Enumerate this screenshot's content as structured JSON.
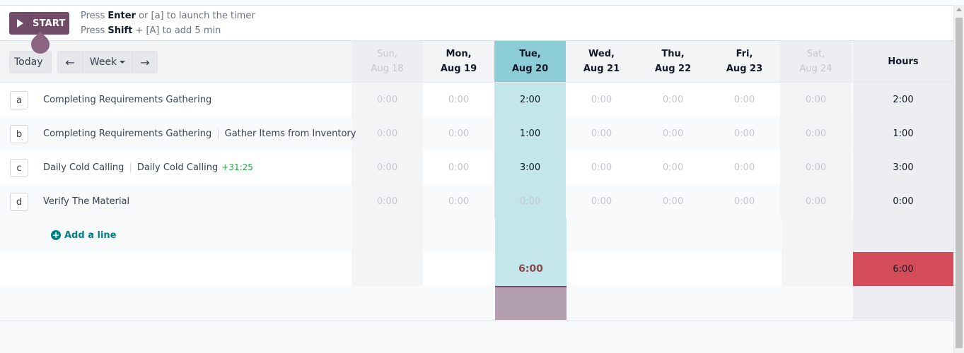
{
  "timer": {
    "start_label": "START",
    "hint1_pre": "Press ",
    "hint1_key": "Enter",
    "hint1_post": " or [a] to launch the timer",
    "hint2_pre": "Press ",
    "hint2_key": "Shift",
    "hint2_post": " + [A] to add 5 min"
  },
  "nav": {
    "today_label": "Today",
    "prev_icon": "arrow-left-icon",
    "week_label": "Week",
    "next_icon": "arrow-right-icon"
  },
  "columns": {
    "days": [
      {
        "dow": "Sun,",
        "date": "Aug 18",
        "kind": "weekend"
      },
      {
        "dow": "Mon,",
        "date": "Aug 19",
        "kind": "weekday"
      },
      {
        "dow": "Tue,",
        "date": "Aug 20",
        "kind": "today"
      },
      {
        "dow": "Wed,",
        "date": "Aug 21",
        "kind": "weekday"
      },
      {
        "dow": "Thu,",
        "date": "Aug 22",
        "kind": "weekday"
      },
      {
        "dow": "Fri,",
        "date": "Aug 23",
        "kind": "weekday"
      },
      {
        "dow": "Sat,",
        "date": "Aug 24",
        "kind": "weekend"
      }
    ],
    "hours_label": "Hours"
  },
  "lines": [
    {
      "key": "a",
      "project": "Completing Requirements Gathering",
      "task": "",
      "extra": "",
      "values": [
        "0:00",
        "0:00",
        "2:00",
        "0:00",
        "0:00",
        "0:00",
        "0:00"
      ],
      "total": "2:00"
    },
    {
      "key": "b",
      "project": "Completing Requirements Gathering",
      "task": "Gather Items from Inventory",
      "extra": "",
      "values": [
        "0:00",
        "0:00",
        "1:00",
        "0:00",
        "0:00",
        "0:00",
        "0:00"
      ],
      "total": "1:00"
    },
    {
      "key": "c",
      "project": "Daily Cold Calling",
      "task": "Daily Cold Calling",
      "extra": "+31:25",
      "values": [
        "0:00",
        "0:00",
        "3:00",
        "0:00",
        "0:00",
        "0:00",
        "0:00"
      ],
      "total": "3:00"
    },
    {
      "key": "d",
      "project": "Verify The Material",
      "task": "",
      "extra": "",
      "values": [
        "0:00",
        "0:00",
        "0:00",
        "0:00",
        "0:00",
        "0:00",
        "0:00"
      ],
      "total": "0:00"
    }
  ],
  "add_line_label": "Add a line",
  "totals": {
    "today": "6:00",
    "hours": "6:00"
  },
  "colors": {
    "brand": "#714b67",
    "today_header": "#8ccdd7",
    "today_cell": "#c3e6ea",
    "overtime": "#d44c59",
    "link": "#017e84",
    "plus": "#28a745"
  }
}
